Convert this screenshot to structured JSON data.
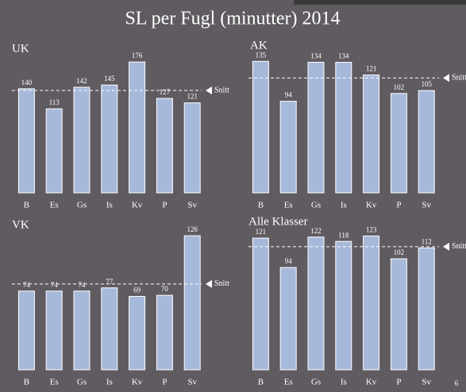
{
  "title": "SL per Fugl (minutter) 2014",
  "page_number": "6",
  "chart_data": [
    {
      "type": "bar",
      "title": "UK",
      "categories": [
        "B",
        "Es",
        "Gs",
        "Is",
        "Kv",
        "P",
        "Sv"
      ],
      "values": [
        140,
        113,
        142,
        145,
        176,
        127,
        121
      ],
      "color": "#a7b9da",
      "ylim": [
        0,
        190
      ],
      "reference_line": {
        "label": "Snitt",
        "value": 137.7
      }
    },
    {
      "type": "bar",
      "title": "AK",
      "categories": [
        "B",
        "Es",
        "Gs",
        "Is",
        "Kv",
        "P",
        "Sv"
      ],
      "values": [
        135,
        94,
        134,
        134,
        121,
        102,
        105
      ],
      "color": "#a7b9da",
      "ylim": [
        0,
        145
      ],
      "reference_line": {
        "label": "Snitt",
        "value": 117.9
      }
    },
    {
      "type": "bar",
      "title": "VK",
      "categories": [
        "B",
        "Es",
        "Gs",
        "Is",
        "Kv",
        "P",
        "Sv"
      ],
      "values": [
        74,
        74,
        74,
        77,
        69,
        70,
        126
      ],
      "color": "#a7b9da",
      "ylim": [
        0,
        135
      ],
      "reference_line": {
        "label": "Snitt",
        "value": 80.6
      }
    },
    {
      "type": "bar",
      "title": "Alle Klasser",
      "categories": [
        "B",
        "Es",
        "Gs",
        "Is",
        "Kv",
        "P",
        "Sv"
      ],
      "values": [
        121,
        94,
        122,
        118,
        123,
        102,
        112
      ],
      "color": "#a7b9da",
      "ylim": [
        0,
        132
      ],
      "reference_line": {
        "label": "Snitt",
        "value": 113.1
      }
    }
  ]
}
